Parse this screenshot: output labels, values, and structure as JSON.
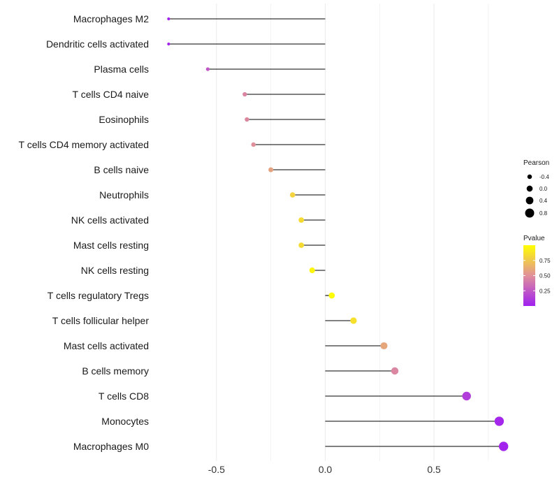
{
  "chart_data": {
    "type": "lollipop",
    "title": "",
    "xlabel": "",
    "ylabel": "",
    "xlim": [
      -0.75,
      0.85
    ],
    "xticks": [
      -0.5,
      0.0,
      0.5
    ],
    "xtick_labels": [
      "-0.5",
      "0.0",
      "0.5"
    ],
    "baseline": 0,
    "grid": true,
    "categories": [
      "Macrophages M2",
      "Dendritic cells activated",
      "Plasma cells",
      "T cells CD4 naive",
      "Eosinophils",
      "T cells CD4 memory activated",
      "B cells naive",
      "Neutrophils",
      "NK cells activated",
      "Mast cells resting",
      "NK cells resting",
      "T cells regulatory  Tregs",
      "T cells follicular helper",
      "Mast cells activated",
      "B cells memory",
      "T cells CD8",
      "Monocytes",
      "Macrophages M0"
    ],
    "pearson": [
      -0.72,
      -0.72,
      -0.54,
      -0.37,
      -0.36,
      -0.33,
      -0.25,
      -0.15,
      -0.11,
      -0.11,
      -0.06,
      0.03,
      0.13,
      0.27,
      0.32,
      0.65,
      0.8,
      0.82
    ],
    "pvalue": [
      0.02,
      0.02,
      0.25,
      0.45,
      0.47,
      0.5,
      0.58,
      0.8,
      0.84,
      0.84,
      0.96,
      0.99,
      0.86,
      0.6,
      0.46,
      0.13,
      0.03,
      0.02
    ],
    "legend": {
      "position": "right",
      "size": {
        "title": "Pearson",
        "entries": [
          {
            "label": "-0.4",
            "value": -0.4
          },
          {
            "label": "0.0",
            "value": 0.0
          },
          {
            "label": "0.4",
            "value": 0.4
          },
          {
            "label": "0.8",
            "value": 0.8
          }
        ]
      },
      "color": {
        "title": "Pvalue",
        "ticks": [
          {
            "label": "0.75",
            "value": 0.75
          },
          {
            "label": "0.50",
            "value": 0.5
          },
          {
            "label": "0.25",
            "value": 0.25
          }
        ],
        "range": [
          0.0,
          1.0
        ],
        "low_color": "#a020f0",
        "mid_color": "#e0909a",
        "high_color": "#ffff00"
      }
    },
    "colors": {
      "stem": "#000000",
      "grid": "#ebebeb"
    }
  }
}
